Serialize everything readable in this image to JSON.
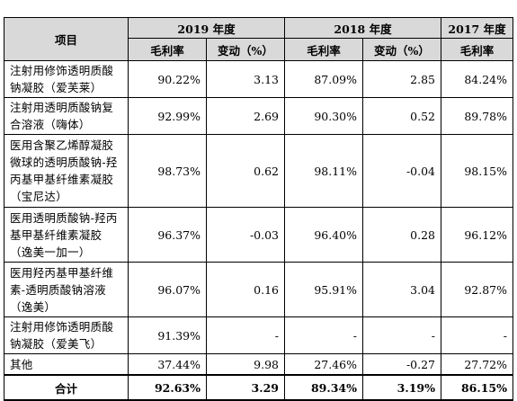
{
  "table": {
    "header": {
      "item_label": "项目",
      "years": [
        "2019 年度",
        "2018 年度",
        "2017 年度"
      ],
      "gross_margin": "毛利率",
      "change": "变动（%）"
    },
    "rows": [
      {
        "name": "注射用修饰透明质酸钠凝胶（爱芙莱）",
        "gm2019": "90.22%",
        "chg2019": "3.13",
        "gm2018": "87.09%",
        "chg2018": "2.85",
        "gm2017": "84.24%"
      },
      {
        "name": "注射用透明质酸钠复合溶液（嗨体）",
        "gm2019": "92.99%",
        "chg2019": "2.69",
        "gm2018": "90.30%",
        "chg2018": "0.52",
        "gm2017": "89.78%"
      },
      {
        "name": "医用含聚乙烯醇凝胶微球的透明质酸钠-羟丙基甲基纤维素凝胶（宝尼达）",
        "gm2019": "98.73%",
        "chg2019": "0.62",
        "gm2018": "98.11%",
        "chg2018": "-0.04",
        "gm2017": "98.15%"
      },
      {
        "name": "医用透明质酸钠-羟丙基甲基纤维素凝胶（逸美一加一）",
        "gm2019": "96.37%",
        "chg2019": "-0.03",
        "gm2018": "96.40%",
        "chg2018": "0.28",
        "gm2017": "96.12%"
      },
      {
        "name": "医用羟丙基甲基纤维素-透明质酸钠溶液（逸美）",
        "gm2019": "96.07%",
        "chg2019": "0.16",
        "gm2018": "95.91%",
        "chg2018": "3.04",
        "gm2017": "92.87%"
      },
      {
        "name": "注射用修饰透明质酸钠凝胶（爱美飞）",
        "gm2019": "91.39%",
        "chg2019": "-",
        "gm2018": "-",
        "chg2018": "-",
        "gm2017": "-"
      },
      {
        "name": "其他",
        "gm2019": "37.44%",
        "chg2019": "9.98",
        "gm2018": "27.46%",
        "chg2018": "-0.27",
        "gm2017": "27.72%"
      }
    ],
    "total": {
      "label": "合计",
      "gm2019": "92.63%",
      "chg2019": "3.29",
      "gm2018": "89.34%",
      "chg2018": "3.19%",
      "gm2017": "86.15%"
    }
  }
}
